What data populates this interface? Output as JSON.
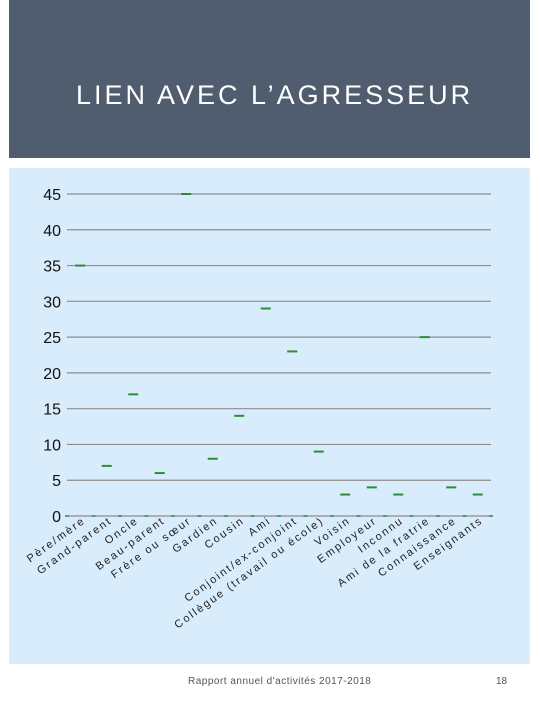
{
  "header": {
    "title": "LIEN AVEC L’AGRESSEUR"
  },
  "footer": {
    "text": "Rapport annuel d'activités 2017-2018",
    "page": "18"
  },
  "colors": {
    "header_bg": "#4f5d6f",
    "chart_bg": "#d9ecfb",
    "marker": "#2e8b3a",
    "gridline": "#8c8c8c"
  },
  "chart_data": {
    "type": "line",
    "title": "",
    "xlabel": "",
    "ylabel": "",
    "ylim": [
      0,
      45
    ],
    "yticks": [
      0,
      5,
      10,
      15,
      20,
      25,
      30,
      35,
      40,
      45
    ],
    "grid": true,
    "legend": "none",
    "categories": [
      "Père/mère",
      "Grand-parent",
      "Oncle",
      "Beau-parent",
      "Frère ou sœur",
      "Gardien",
      "Cousin",
      "Ami",
      "Conjoint/ex-conjoint",
      "Collègue (travail ou école)",
      "Voisin",
      "Employeur",
      "Inconnu",
      "Ami de la fratrie",
      "Connaissance",
      "Enseignants"
    ],
    "values": [
      35,
      7,
      17,
      6,
      45,
      8,
      14,
      29,
      23,
      9,
      3,
      4,
      3,
      25,
      4,
      3
    ]
  }
}
